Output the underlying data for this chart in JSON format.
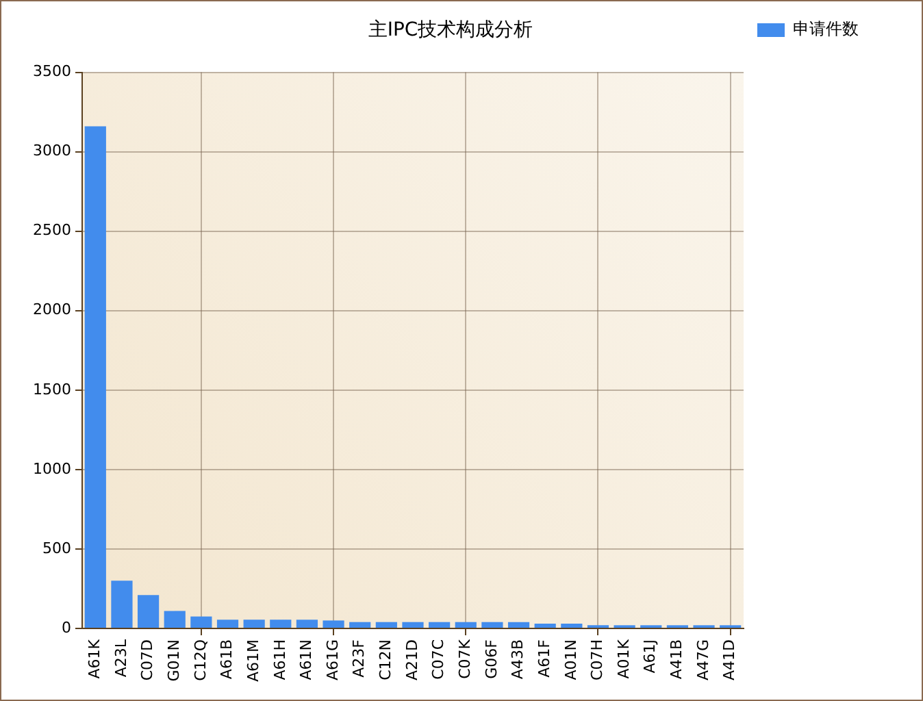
{
  "chart_data": {
    "type": "bar",
    "title": "主IPC技术构成分析",
    "categories": [
      "A61K",
      "A23L",
      "C07D",
      "G01N",
      "C12Q",
      "A61B",
      "A61M",
      "A61H",
      "A61N",
      "A61G",
      "A23F",
      "C12N",
      "A21D",
      "C07C",
      "C07K",
      "G06F",
      "A43B",
      "A61F",
      "A01N",
      "C07H",
      "A01K",
      "A61J",
      "A41B",
      "A47G",
      "A41D"
    ],
    "series": [
      {
        "name": "申请件数",
        "color": "#428ced",
        "values": [
          3160,
          300,
          210,
          110,
          75,
          55,
          55,
          55,
          55,
          50,
          40,
          40,
          40,
          40,
          40,
          40,
          40,
          30,
          30,
          20,
          20,
          20,
          20,
          20,
          20
        ]
      }
    ],
    "ylim": [
      0,
      3500
    ],
    "yticks": [
      0,
      500,
      1000,
      1500,
      2000,
      2500,
      3000,
      3500
    ],
    "grid": true,
    "legend": "top right"
  }
}
